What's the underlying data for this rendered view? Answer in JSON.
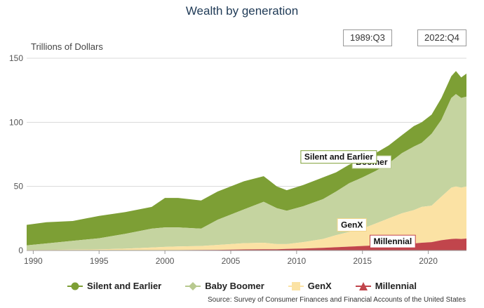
{
  "chart_data": {
    "type": "area",
    "stacked": true,
    "title": "Wealth by generation",
    "ylabel": "Trillions of Dollars",
    "xlabel": "",
    "xlim": [
      1989.5,
      2022.9
    ],
    "ylim": [
      0,
      150
    ],
    "x_ticks": [
      1990,
      1995,
      2000,
      2005,
      2010,
      2015,
      2020
    ],
    "y_ticks": [
      0,
      50,
      100,
      150
    ],
    "grid": "horizontal",
    "legend_position": "bottom",
    "range_start": "1989:Q3",
    "range_end": "2022:Q4",
    "source": "Source: Survey of Consumer Finances and Financial Accounts of the United States",
    "colors": {
      "Silent and Earlier": "#7d9f35",
      "Baby Boomer": "#c5d4a0",
      "GenX": "#fbe2a4",
      "Millennial": "#c1454c"
    },
    "x": [
      1989.5,
      1991,
      1993,
      1995,
      1997,
      1999,
      2000,
      2001,
      2002.75,
      2004,
      2006,
      2007.5,
      2008.5,
      2009.25,
      2010.5,
      2012,
      2013,
      2014,
      2015,
      2016,
      2017,
      2018,
      2018.9,
      2019.5,
      2020.25,
      2021,
      2021.75,
      2022.1,
      2022.5,
      2022.9
    ],
    "series": [
      {
        "name": "Millennial",
        "values": [
          0,
          0,
          0,
          0,
          0.1,
          0.2,
          0.2,
          0.3,
          0.4,
          0.5,
          0.8,
          1.0,
          1.0,
          1.2,
          1.5,
          2.0,
          2.5,
          3.0,
          3.5,
          4.0,
          4.5,
          5.0,
          5.5,
          6.0,
          6.5,
          8.0,
          9.0,
          9.2,
          9.0,
          9.3
        ]
      },
      {
        "name": "GenX",
        "values": [
          0.5,
          0.5,
          0.7,
          0.9,
          1.3,
          2.1,
          2.6,
          2.9,
          3.1,
          3.8,
          4.9,
          5.0,
          4.0,
          3.8,
          5.0,
          7.0,
          9.5,
          11.5,
          13.5,
          17.0,
          20.5,
          24.0,
          26.0,
          28.0,
          28.5,
          34.0,
          40.0,
          40.8,
          40.0,
          40.7
        ]
      },
      {
        "name": "Baby Boomer",
        "values": [
          3.5,
          5.0,
          6.8,
          8.6,
          11.6,
          14.7,
          15.2,
          14.8,
          13.5,
          19.7,
          26.3,
          32.0,
          28.0,
          26.0,
          28.0,
          31.0,
          34.0,
          38.0,
          40.0,
          41.0,
          43.0,
          47.0,
          49.5,
          50.0,
          56.0,
          60.0,
          70.0,
          72.0,
          70.0,
          70.0
        ]
      },
      {
        "name": "Silent and Earlier",
        "values": [
          16.0,
          16.5,
          15.5,
          17.5,
          17.0,
          17.0,
          23.0,
          23.0,
          22.0,
          22.0,
          22.0,
          20.0,
          17.0,
          16.0,
          16.5,
          17.0,
          15.0,
          14.5,
          14.0,
          14.0,
          14.0,
          14.0,
          16.0,
          16.0,
          15.0,
          17.0,
          17.0,
          18.0,
          16.0,
          18.0
        ]
      }
    ],
    "annotations": [
      {
        "label": "Silent and Earlier",
        "x": 2013.2,
        "y": 73
      },
      {
        "label": "Boomer",
        "x": 2015.7,
        "y": 69
      },
      {
        "label": "GenX",
        "x": 2014.2,
        "y": 20
      },
      {
        "label": "Millennial",
        "x": 2017.3,
        "y": 7
      }
    ]
  }
}
